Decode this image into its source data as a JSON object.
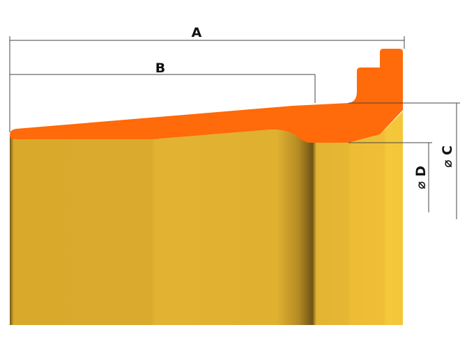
{
  "dimensions": [
    {
      "label": "A"
    },
    {
      "label": "B"
    },
    {
      "label": "⌀ D"
    },
    {
      "label": "⌀ C"
    }
  ]
}
